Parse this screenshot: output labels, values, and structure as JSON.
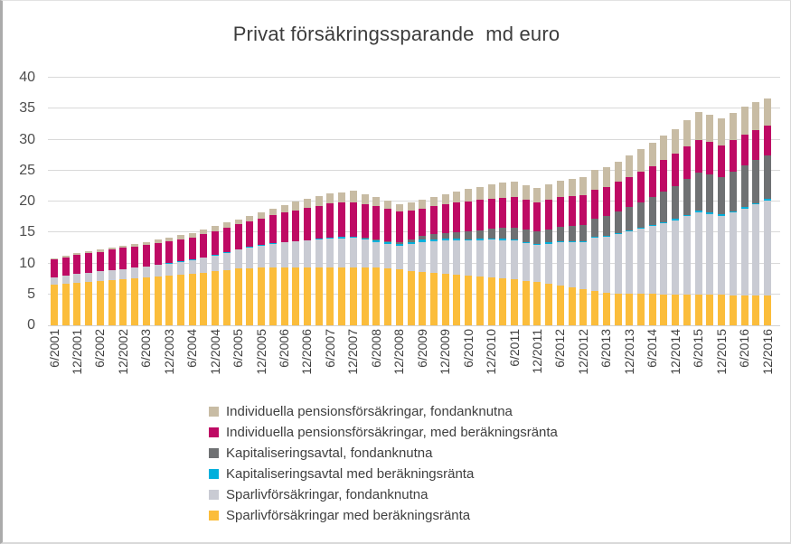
{
  "title": "Privat försäkringssparande  md euro",
  "chart_data": {
    "type": "bar",
    "stacked": true,
    "grid": true,
    "legend_position": "bottom",
    "ylim": [
      0,
      40
    ],
    "y_ticks": [
      0,
      5,
      10,
      15,
      20,
      25,
      30,
      35,
      40
    ],
    "n_bars": 63,
    "bar_period": "quarterly",
    "ticks_every_n_bars": 2,
    "x_tick_labels": [
      "6/2001",
      "12/2001",
      "6/2002",
      "12/2002",
      "6/2003",
      "12/2003",
      "6/2004",
      "12/2004",
      "6/2005",
      "12/2005",
      "6/2006",
      "12/2006",
      "6/2007",
      "12/2007",
      "6/2008",
      "12/2008",
      "6/2009",
      "12/2009",
      "6/2010",
      "12/2010",
      "6/2011",
      "12/2011",
      "6/2012",
      "12/2012",
      "6/2013",
      "12/2013",
      "6/2014",
      "12/2014",
      "6/2015",
      "12/2015",
      "6/2016",
      "12/2016"
    ],
    "series": [
      {
        "name": "Sparlivförsäkringar med beräkningsränta",
        "color": "#FBBD3B",
        "values": [
          6.5,
          6.65,
          6.8,
          6.95,
          7.1,
          7.3,
          7.5,
          7.65,
          7.8,
          7.95,
          8.1,
          8.2,
          8.3,
          8.5,
          8.7,
          8.95,
          9.2,
          9.25,
          9.3,
          9.35,
          9.4,
          9.4,
          9.4,
          9.4,
          9.4,
          9.4,
          9.4,
          9.35,
          9.3,
          9.15,
          9.0,
          8.8,
          8.6,
          8.45,
          8.3,
          8.15,
          8.0,
          7.85,
          7.7,
          7.55,
          7.4,
          7.2,
          7.0,
          6.7,
          6.4,
          6.1,
          5.8,
          5.5,
          5.2,
          5.15,
          5.1,
          5.07,
          5.05,
          5.02,
          5.0,
          4.97,
          4.95,
          4.92,
          4.9,
          4.87,
          4.85,
          4.85,
          4.85
        ]
      },
      {
        "name": "Sparlivförsäkringar, fondanknutna",
        "color": "#C9CBD3",
        "values": [
          1.3,
          1.4,
          1.5,
          1.55,
          1.6,
          1.6,
          1.6,
          1.65,
          1.7,
          1.8,
          1.9,
          2.05,
          2.2,
          2.4,
          2.6,
          2.8,
          3.0,
          3.3,
          3.6,
          3.8,
          4.0,
          4.15,
          4.3,
          4.45,
          4.6,
          4.65,
          4.7,
          4.45,
          4.2,
          4.0,
          3.8,
          4.3,
          4.9,
          5.15,
          5.4,
          5.55,
          5.7,
          5.9,
          6.1,
          6.2,
          6.3,
          6.1,
          6.0,
          6.5,
          7.0,
          7.3,
          7.6,
          8.65,
          9.1,
          9.6,
          10.1,
          10.5,
          10.95,
          11.5,
          12.0,
          12.7,
          13.35,
          13.1,
          12.8,
          13.4,
          14.05,
          14.7,
          15.35
        ]
      },
      {
        "name": "Kapitaliseringsavtal med beräkningsränta",
        "color": "#00B0DC",
        "values": [
          0,
          0,
          0,
          0,
          0,
          0,
          0,
          0,
          0,
          0.1,
          0.1,
          0.1,
          0.1,
          0.1,
          0.1,
          0.1,
          0.1,
          0.1,
          0.1,
          0.1,
          0.1,
          0.1,
          0.1,
          0.15,
          0.2,
          0.2,
          0.2,
          0.2,
          0.2,
          0.25,
          0.3,
          0.3,
          0.3,
          0.3,
          0.25,
          0.25,
          0.2,
          0.2,
          0.2,
          0.2,
          0.2,
          0.2,
          0.2,
          0.2,
          0.2,
          0.2,
          0.2,
          0.2,
          0.2,
          0.2,
          0.2,
          0.2,
          0.2,
          0.2,
          0.2,
          0.2,
          0.2,
          0.2,
          0.2,
          0.2,
          0.2,
          0.2,
          0.2
        ]
      },
      {
        "name": "Kapitaliseringsavtal, fondanknutna",
        "color": "#6F7173",
        "values": [
          0,
          0,
          0,
          0,
          0,
          0,
          0,
          0,
          0,
          0,
          0,
          0,
          0,
          0,
          0,
          0,
          0,
          0,
          0,
          0,
          0,
          0,
          0,
          0,
          0,
          0,
          0,
          0.1,
          0.2,
          0.25,
          0.3,
          0.5,
          0.7,
          0.85,
          1.0,
          1.15,
          1.3,
          1.45,
          1.6,
          1.75,
          1.9,
          1.95,
          2.0,
          2.15,
          2.3,
          2.45,
          2.6,
          2.85,
          3.1,
          3.45,
          3.8,
          4.15,
          4.5,
          4.9,
          5.3,
          5.75,
          6.2,
          6.15,
          6.1,
          6.4,
          6.7,
          6.9,
          7.0
        ]
      },
      {
        "name": "Individuella pensionsförsäkringar, med beräkningsränta",
        "color": "#BE0A64",
        "values": [
          2.8,
          2.95,
          3.1,
          3.15,
          3.2,
          3.3,
          3.4,
          3.45,
          3.5,
          3.5,
          3.5,
          3.55,
          3.6,
          3.7,
          3.8,
          3.9,
          4.0,
          4.15,
          4.3,
          4.5,
          4.7,
          4.95,
          5.2,
          5.35,
          5.5,
          5.55,
          5.6,
          5.5,
          5.4,
          5.2,
          5.0,
          4.7,
          4.4,
          4.5,
          4.6,
          4.7,
          4.8,
          4.85,
          4.9,
          4.9,
          4.9,
          4.8,
          4.7,
          4.75,
          4.8,
          4.8,
          4.8,
          4.75,
          4.7,
          4.75,
          4.8,
          4.9,
          5.0,
          5.1,
          5.2,
          5.25,
          5.3,
          5.2,
          5.1,
          5.05,
          5.0,
          4.9,
          4.8
        ]
      },
      {
        "name": "Individuella pensionsförsäkringar, fondanknutna",
        "color": "#C8BCA4",
        "values": [
          0.2,
          0.25,
          0.3,
          0.35,
          0.4,
          0.4,
          0.4,
          0.45,
          0.5,
          0.55,
          0.6,
          0.65,
          0.7,
          0.8,
          0.9,
          0.85,
          0.8,
          0.9,
          1.0,
          1.1,
          1.2,
          1.35,
          1.5,
          1.55,
          1.6,
          1.7,
          1.8,
          1.6,
          1.4,
          1.25,
          1.1,
          1.25,
          1.4,
          1.5,
          1.6,
          1.8,
          2.0,
          2.15,
          2.3,
          2.4,
          2.5,
          2.4,
          2.3,
          2.5,
          2.7,
          2.85,
          3.0,
          3.1,
          3.2,
          3.35,
          3.5,
          3.65,
          3.8,
          3.9,
          4.0,
          4.25,
          4.5,
          4.45,
          4.4,
          4.45,
          4.5,
          4.45,
          4.4
        ]
      }
    ],
    "legend_order_top_to_bottom": [
      "Individuella pensionsförsäkringar, fondanknutna",
      "Individuella pensionsförsäkringar, med beräkningsränta",
      "Kapitaliseringsavtal, fondanknutna",
      "Kapitaliseringsavtal med beräkningsränta",
      "Sparlivförsäkringar, fondanknutna",
      "Sparlivförsäkringar med beräkningsränta"
    ]
  }
}
